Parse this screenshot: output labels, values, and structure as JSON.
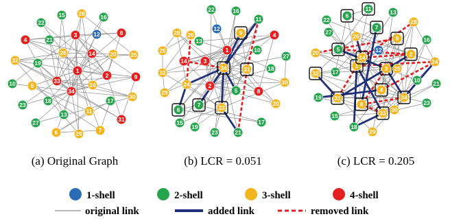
{
  "colors": {
    "shell1": "#2a6db5",
    "shell2": "#27a54e",
    "shell3": "#f2b51d",
    "shell4": "#e32121",
    "original_link": "#8c8c8c",
    "added_link": "#1f2f7a",
    "removed_link": "#e41a1c"
  },
  "captions": [
    "(a) Original Graph",
    "(b) LCR = 0.051",
    "(c) LCR = 0.205"
  ],
  "legend": {
    "shells": [
      "1-shell",
      "2-shell",
      "3-shell",
      "4-shell"
    ],
    "links": [
      "original link",
      "added link",
      "removed link"
    ]
  },
  "graphs": [
    {
      "name": "original",
      "nodes": [
        {
          "id": 1,
          "shell": 4
        },
        {
          "id": 2,
          "shell": 4
        },
        {
          "id": 3,
          "shell": 4
        },
        {
          "id": 4,
          "shell": 4
        },
        {
          "id": 5,
          "shell": 3
        },
        {
          "id": 6,
          "shell": 3
        },
        {
          "id": 7,
          "shell": 3
        },
        {
          "id": 8,
          "shell": 4
        },
        {
          "id": 9,
          "shell": 4
        },
        {
          "id": 10,
          "shell": 2
        },
        {
          "id": 11,
          "shell": 3
        },
        {
          "id": 12,
          "shell": 1
        },
        {
          "id": 13,
          "shell": 2
        },
        {
          "id": 14,
          "shell": 4
        },
        {
          "id": 15,
          "shell": 2
        },
        {
          "id": 16,
          "shell": 2
        },
        {
          "id": 17,
          "shell": 2
        },
        {
          "id": 18,
          "shell": 2
        },
        {
          "id": 19,
          "shell": 2
        },
        {
          "id": 20,
          "shell": 3
        },
        {
          "id": 21,
          "shell": 2
        },
        {
          "id": 22,
          "shell": 2
        },
        {
          "id": 23,
          "shell": 2
        },
        {
          "id": 24,
          "shell": 3
        },
        {
          "id": 25,
          "shell": 3
        },
        {
          "id": 26,
          "shell": 3
        },
        {
          "id": 27,
          "shell": 2
        },
        {
          "id": 28,
          "shell": 3
        },
        {
          "id": 29,
          "shell": 3
        },
        {
          "id": 30,
          "shell": 3
        },
        {
          "id": 31,
          "shell": 4
        },
        {
          "id": 32,
          "shell": 3
        },
        {
          "id": 33,
          "shell": 4
        },
        {
          "id": 34,
          "shell": 4
        }
      ]
    },
    {
      "name": "LCR = 0.051",
      "nodes": [
        {
          "id": 1,
          "shell": 4
        },
        {
          "id": 2,
          "shell": 4
        },
        {
          "id": 3,
          "shell": 4
        },
        {
          "id": 4,
          "shell": 4
        },
        {
          "id": 5,
          "shell": 2
        },
        {
          "id": 6,
          "shell": 2,
          "boxed": true
        },
        {
          "id": 7,
          "shell": 2,
          "boxed": true
        },
        {
          "id": 8,
          "shell": 4
        },
        {
          "id": 9,
          "shell": 3,
          "boxed": true
        },
        {
          "id": 10,
          "shell": 2
        },
        {
          "id": 11,
          "shell": 2
        },
        {
          "id": 12,
          "shell": 1
        },
        {
          "id": 13,
          "shell": 2
        },
        {
          "id": 14,
          "shell": 4
        },
        {
          "id": 15,
          "shell": 2
        },
        {
          "id": 16,
          "shell": 2
        },
        {
          "id": 17,
          "shell": 2
        },
        {
          "id": 18,
          "shell": 2
        },
        {
          "id": 19,
          "shell": 2
        },
        {
          "id": 20,
          "shell": 3
        },
        {
          "id": 21,
          "shell": 2
        },
        {
          "id": 22,
          "shell": 2
        },
        {
          "id": 23,
          "shell": 2
        },
        {
          "id": 24,
          "shell": 3
        },
        {
          "id": 25,
          "shell": 3
        },
        {
          "id": 26,
          "shell": 3
        },
        {
          "id": 27,
          "shell": 2
        },
        {
          "id": 28,
          "shell": 3
        },
        {
          "id": 29,
          "shell": 3
        },
        {
          "id": 30,
          "shell": 3
        },
        {
          "id": 31,
          "shell": 3,
          "boxed": true
        },
        {
          "id": 32,
          "shell": 3
        },
        {
          "id": 33,
          "shell": 3,
          "boxed": true
        },
        {
          "id": 34,
          "shell": 3,
          "boxed": true
        }
      ]
    },
    {
      "name": "LCR = 0.205",
      "nodes": [
        {
          "id": 1,
          "shell": 3,
          "boxed": true
        },
        {
          "id": 2,
          "shell": 3,
          "boxed": true
        },
        {
          "id": 3,
          "shell": 3,
          "boxed": true
        },
        {
          "id": 4,
          "shell": 3,
          "boxed": true
        },
        {
          "id": 5,
          "shell": 2,
          "boxed": true
        },
        {
          "id": 6,
          "shell": 2,
          "boxed": true
        },
        {
          "id": 7,
          "shell": 2,
          "boxed": true
        },
        {
          "id": 8,
          "shell": 3,
          "boxed": true
        },
        {
          "id": 9,
          "shell": 3,
          "boxed": true
        },
        {
          "id": 10,
          "shell": 2
        },
        {
          "id": 11,
          "shell": 2,
          "boxed": true
        },
        {
          "id": 12,
          "shell": 1
        },
        {
          "id": 13,
          "shell": 2
        },
        {
          "id": 14,
          "shell": 3,
          "boxed": true
        },
        {
          "id": 15,
          "shell": 2
        },
        {
          "id": 16,
          "shell": 2
        },
        {
          "id": 17,
          "shell": 2
        },
        {
          "id": 18,
          "shell": 2
        },
        {
          "id": 19,
          "shell": 2
        },
        {
          "id": 20,
          "shell": 3
        },
        {
          "id": 21,
          "shell": 2
        },
        {
          "id": 22,
          "shell": 2
        },
        {
          "id": 23,
          "shell": 2
        },
        {
          "id": 24,
          "shell": 3
        },
        {
          "id": 25,
          "shell": 3
        },
        {
          "id": 26,
          "shell": 3
        },
        {
          "id": 27,
          "shell": 2
        },
        {
          "id": 28,
          "shell": 3
        },
        {
          "id": 29,
          "shell": 3
        },
        {
          "id": 30,
          "shell": 3
        },
        {
          "id": 31,
          "shell": 3,
          "boxed": true
        },
        {
          "id": 32,
          "shell": 3,
          "boxed": true
        },
        {
          "id": 33,
          "shell": 3,
          "boxed": true
        },
        {
          "id": 34,
          "shell": 3,
          "boxed": true
        }
      ]
    }
  ]
}
